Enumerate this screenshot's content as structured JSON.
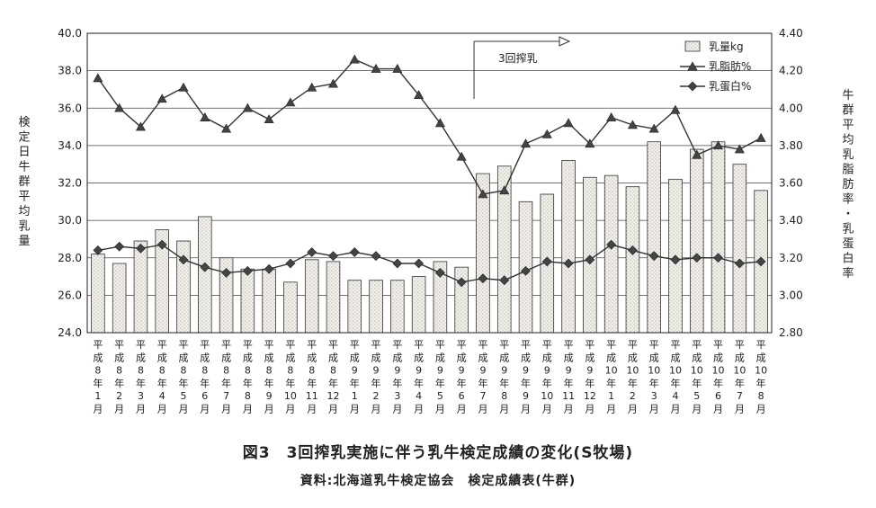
{
  "figure": {
    "title": "図3　3回搾乳実施に伴う乳牛検定成績の変化(S牧場)",
    "source": "資料:北海道乳牛検定協会　検定成績表(牛群)"
  },
  "chart_data": {
    "type": "bar",
    "categories": [
      "平成8年1月",
      "平成8年2月",
      "平成8年3月",
      "平成8年4月",
      "平成8年5月",
      "平成8年6月",
      "平成8年7月",
      "平成8年8月",
      "平成8年9月",
      "平成8年10月",
      "平成8年11月",
      "平成8年12月",
      "平成9年1月",
      "平成9年2月",
      "平成9年3月",
      "平成9年4月",
      "平成9年5月",
      "平成9年6月",
      "平成9年7月",
      "平成9年8月",
      "平成9年9月",
      "平成9年10月",
      "平成9年11月",
      "平成9年12月",
      "平成10年1月",
      "平成10年2月",
      "平成10年3月",
      "平成10年4月",
      "平成10年5月",
      "平成10年6月",
      "平成10年7月",
      "平成10年8月"
    ],
    "category_labels": [
      [
        "平",
        "成",
        "8",
        "年",
        "1",
        "月"
      ],
      [
        "平",
        "成",
        "8",
        "年",
        "2",
        "月"
      ],
      [
        "平",
        "成",
        "8",
        "年",
        "3",
        "月"
      ],
      [
        "平",
        "成",
        "8",
        "年",
        "4",
        "月"
      ],
      [
        "平",
        "成",
        "8",
        "年",
        "5",
        "月"
      ],
      [
        "平",
        "成",
        "8",
        "年",
        "6",
        "月"
      ],
      [
        "平",
        "成",
        "8",
        "年",
        "7",
        "月"
      ],
      [
        "平",
        "成",
        "8",
        "年",
        "8",
        "月"
      ],
      [
        "平",
        "成",
        "8",
        "年",
        "9",
        "月"
      ],
      [
        "平",
        "成",
        "8",
        "年",
        "10",
        "月"
      ],
      [
        "平",
        "成",
        "8",
        "年",
        "11",
        "月"
      ],
      [
        "平",
        "成",
        "8",
        "年",
        "12",
        "月"
      ],
      [
        "平",
        "成",
        "9",
        "年",
        "1",
        "月"
      ],
      [
        "平",
        "成",
        "9",
        "年",
        "2",
        "月"
      ],
      [
        "平",
        "成",
        "9",
        "年",
        "3",
        "月"
      ],
      [
        "平",
        "成",
        "9",
        "年",
        "4",
        "月"
      ],
      [
        "平",
        "成",
        "9",
        "年",
        "5",
        "月"
      ],
      [
        "平",
        "成",
        "9",
        "年",
        "6",
        "月"
      ],
      [
        "平",
        "成",
        "9",
        "年",
        "7",
        "月"
      ],
      [
        "平",
        "成",
        "9",
        "年",
        "8",
        "月"
      ],
      [
        "平",
        "成",
        "9",
        "年",
        "9",
        "月"
      ],
      [
        "平",
        "成",
        "9",
        "年",
        "10",
        "月"
      ],
      [
        "平",
        "成",
        "9",
        "年",
        "11",
        "月"
      ],
      [
        "平",
        "成",
        "9",
        "年",
        "12",
        "月"
      ],
      [
        "平",
        "成",
        "10",
        "年",
        "1",
        "月"
      ],
      [
        "平",
        "成",
        "10",
        "年",
        "2",
        "月"
      ],
      [
        "平",
        "成",
        "10",
        "年",
        "3",
        "月"
      ],
      [
        "平",
        "成",
        "10",
        "年",
        "4",
        "月"
      ],
      [
        "平",
        "成",
        "10",
        "年",
        "5",
        "月"
      ],
      [
        "平",
        "成",
        "10",
        "年",
        "6",
        "月"
      ],
      [
        "平",
        "成",
        "10",
        "年",
        "7",
        "月"
      ],
      [
        "平",
        "成",
        "10",
        "年",
        "8",
        "月"
      ]
    ],
    "ylabel_left": "検定日牛群平均乳量",
    "ylabel_right": "牛群平均乳脂肪率・乳蛋白率",
    "ylim_left": [
      24.0,
      40.0
    ],
    "yticks_left": [
      "24.0",
      "26.0",
      "28.0",
      "30.0",
      "32.0",
      "34.0",
      "36.0",
      "38.0",
      "40.0"
    ],
    "ylim_right": [
      2.8,
      4.4
    ],
    "yticks_right": [
      "2.80",
      "3.00",
      "3.20",
      "3.40",
      "3.60",
      "3.80",
      "4.00",
      "4.20",
      "4.40"
    ],
    "grid": "horizontal",
    "legend_position": "top-right",
    "series": [
      {
        "name": "乳量kg",
        "type": "bar",
        "axis": "left",
        "values": [
          28.2,
          27.7,
          28.9,
          29.5,
          28.9,
          30.2,
          28.0,
          27.4,
          27.4,
          26.7,
          27.9,
          27.8,
          26.8,
          26.8,
          26.8,
          27.0,
          27.8,
          27.5,
          32.5,
          32.9,
          31.0,
          31.4,
          33.2,
          32.3,
          32.4,
          31.8,
          34.2,
          32.2,
          33.8,
          34.2,
          33.0,
          31.6
        ]
      },
      {
        "name": "乳脂肪%",
        "type": "line",
        "marker": "triangle",
        "axis": "right",
        "values": [
          4.16,
          4.0,
          3.9,
          4.05,
          4.11,
          3.95,
          3.89,
          4.0,
          3.94,
          4.03,
          4.11,
          4.13,
          4.26,
          4.21,
          4.21,
          4.07,
          3.92,
          3.74,
          3.54,
          3.56,
          3.81,
          3.86,
          3.92,
          3.81,
          3.95,
          3.91,
          3.89,
          3.99,
          3.75,
          3.8,
          3.78,
          3.84
        ]
      },
      {
        "name": "乳蛋白%",
        "type": "line",
        "marker": "diamond",
        "axis": "right",
        "values": [
          3.24,
          3.26,
          3.25,
          3.27,
          3.19,
          3.15,
          3.12,
          3.13,
          3.14,
          3.17,
          3.23,
          3.21,
          3.23,
          3.21,
          3.17,
          3.17,
          3.12,
          3.07,
          3.09,
          3.08,
          3.13,
          3.18,
          3.17,
          3.19,
          3.27,
          3.24,
          3.21,
          3.19,
          3.2,
          3.2,
          3.17,
          3.18
        ]
      }
    ],
    "annotations": [
      {
        "text": "3回搾乳",
        "arrow": "right",
        "from_category": "平成9年7月"
      }
    ]
  }
}
